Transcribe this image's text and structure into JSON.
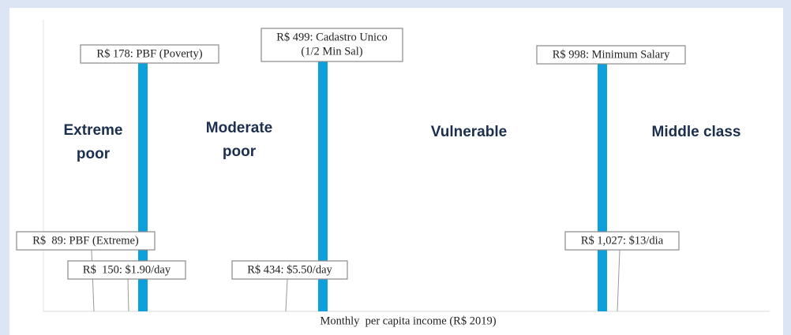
{
  "thresholds_top": [
    {
      "lines": [
        "R$ 178: PBF (Poverty)"
      ]
    },
    {
      "lines": [
        "R$ 499: Cadastro Unico",
        "(1/2 Min Sal)"
      ]
    },
    {
      "lines": [
        "R$ 998: Minimum Salary"
      ]
    }
  ],
  "thresholds_bottom": [
    {
      "lines": [
        "R$  89: PBF (Extreme)"
      ]
    },
    {
      "lines": [
        "R$  150: $1.90/day"
      ]
    },
    {
      "lines": [
        "R$ 434: $5.50/day"
      ]
    },
    {
      "lines": [
        "R$ 1,027: $13/dia"
      ]
    }
  ],
  "groups": [
    {
      "lines": [
        "Extreme",
        "poor"
      ]
    },
    {
      "lines": [
        "Moderate",
        "poor"
      ]
    },
    {
      "lines": [
        "Vulnerable"
      ]
    },
    {
      "lines": [
        "Middle class"
      ]
    }
  ],
  "axis_label": "Monthly  per capita income (R$ 2019)"
}
